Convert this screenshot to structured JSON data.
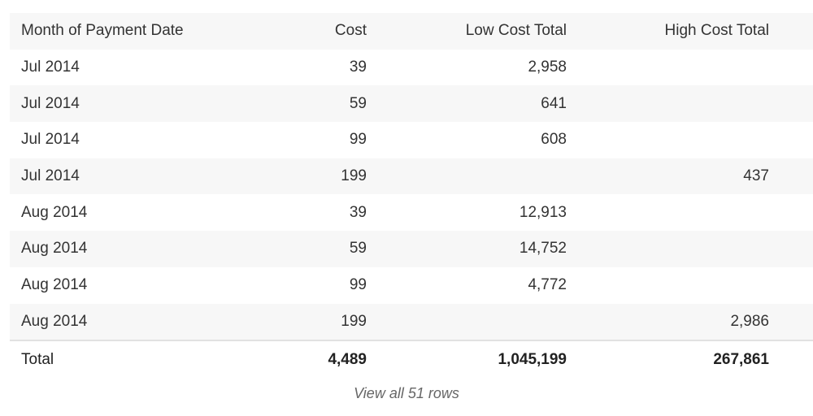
{
  "table": {
    "columns": [
      "Month of Payment Date",
      "Cost",
      "Low Cost Total",
      "High Cost Total"
    ],
    "rows": [
      [
        "Jul 2014",
        "39",
        "2,958",
        ""
      ],
      [
        "Jul 2014",
        "59",
        "641",
        ""
      ],
      [
        "Jul 2014",
        "99",
        "608",
        ""
      ],
      [
        "Jul 2014",
        "199",
        "",
        "437"
      ],
      [
        "Aug 2014",
        "39",
        "12,913",
        ""
      ],
      [
        "Aug 2014",
        "59",
        "14,752",
        ""
      ],
      [
        "Aug 2014",
        "99",
        "4,772",
        ""
      ],
      [
        "Aug 2014",
        "199",
        "",
        "2,986"
      ]
    ],
    "totals": [
      "Total",
      "4,489",
      "1,045,199",
      "267,861"
    ]
  },
  "footer": {
    "view_all_label": "View all 51 rows"
  }
}
